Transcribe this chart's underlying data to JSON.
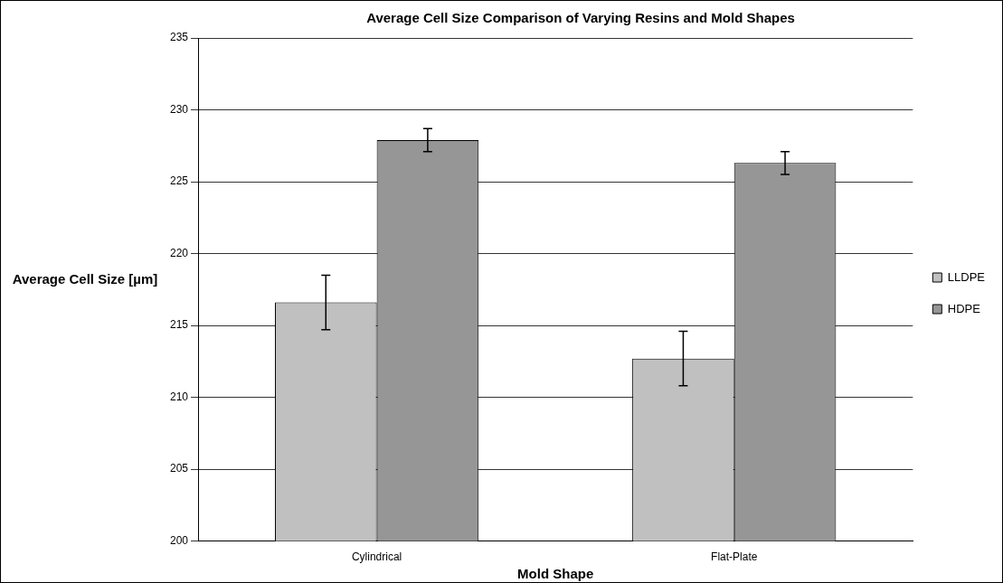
{
  "chart_data": {
    "type": "bar",
    "title": "Average Cell Size Comparison of Varying Resins and Mold Shapes",
    "xlabel": "Mold Shape",
    "ylabel": "Average Cell Size [µm]",
    "categories": [
      "Cylindrical",
      "Flat-Plate"
    ],
    "series": [
      {
        "name": "LLDPE",
        "color": "#c0c0c0",
        "values": [
          216.6,
          212.7
        ],
        "errors": [
          1.9,
          1.9
        ]
      },
      {
        "name": "HDPE",
        "color": "#969696",
        "values": [
          227.9,
          226.3
        ],
        "errors": [
          0.8,
          0.8
        ]
      }
    ],
    "ylim": [
      200,
      235
    ],
    "yticks": [
      200,
      205,
      210,
      215,
      220,
      225,
      230,
      235
    ],
    "grid": "y",
    "legend": "right"
  }
}
